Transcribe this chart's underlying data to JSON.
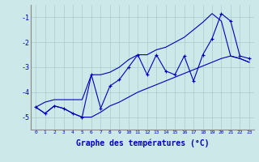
{
  "xlabel": "Graphe des températures (°C)",
  "background_color": "#cce8e8",
  "grid_color": "#aacccc",
  "line_color": "#0000bb",
  "hours": [
    0,
    1,
    2,
    3,
    4,
    5,
    6,
    7,
    8,
    9,
    10,
    11,
    12,
    13,
    14,
    15,
    16,
    17,
    18,
    19,
    20,
    21,
    22,
    23
  ],
  "temp_zigzag": [
    -4.6,
    -4.85,
    -4.55,
    -4.65,
    -4.85,
    -5.0,
    -3.3,
    -4.65,
    -3.75,
    -3.5,
    -3.0,
    -2.5,
    -3.3,
    -2.5,
    -3.15,
    -3.3,
    -2.55,
    -3.55,
    -2.5,
    -1.85,
    -0.85,
    -1.15,
    -2.55,
    -2.65
  ],
  "temp_upper": [
    -4.6,
    -4.4,
    -4.3,
    -4.3,
    -4.3,
    -4.3,
    -3.3,
    -3.3,
    -3.2,
    -3.0,
    -2.7,
    -2.5,
    -2.5,
    -2.3,
    -2.2,
    -2.0,
    -1.8,
    -1.5,
    -1.2,
    -0.85,
    -1.15,
    -2.55,
    -2.65,
    -2.8
  ],
  "temp_lower": [
    -4.6,
    -4.85,
    -4.55,
    -4.65,
    -4.85,
    -5.0,
    -5.0,
    -4.8,
    -4.55,
    -4.4,
    -4.2,
    -4.0,
    -3.85,
    -3.7,
    -3.55,
    -3.4,
    -3.25,
    -3.1,
    -2.95,
    -2.8,
    -2.65,
    -2.55,
    -2.65,
    -2.8
  ],
  "ylim": [
    -5.5,
    -0.5
  ],
  "xlim": [
    -0.5,
    23.5
  ],
  "yticks": [
    -5,
    -4,
    -3,
    -2,
    -1
  ],
  "xticks": [
    0,
    1,
    2,
    3,
    4,
    5,
    6,
    7,
    8,
    9,
    10,
    11,
    12,
    13,
    14,
    15,
    16,
    17,
    18,
    19,
    20,
    21,
    22,
    23
  ]
}
